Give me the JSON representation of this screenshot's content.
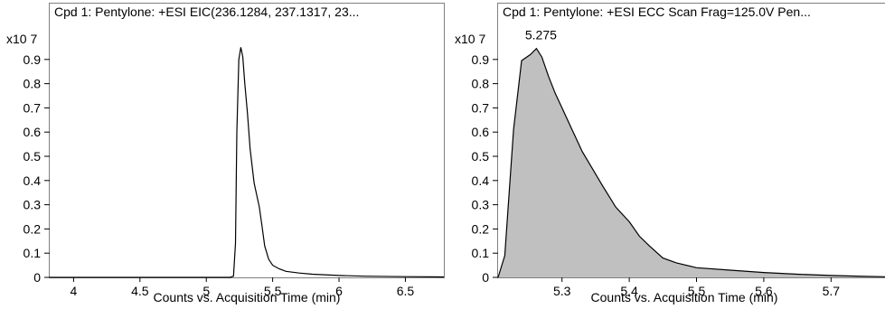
{
  "chart_data": [
    {
      "type": "line",
      "title": "Cpd 1: Pentylone: +ESI EIC(236.1284, 237.1317, 23...",
      "xlabel": "Counts vs. Acquisition Time (min)",
      "ylabel": "",
      "y_multiplier": "x10 7",
      "xlim": [
        3.82,
        6.79
      ],
      "ylim": [
        0,
        1.0
      ],
      "xticks": [
        4,
        4.5,
        5,
        5.5,
        6,
        6.5
      ],
      "xtick_labels": [
        "4",
        "4.5",
        "5",
        "5.5",
        "6",
        "6.5"
      ],
      "yticks": [
        0,
        0.1,
        0.2,
        0.3,
        0.4,
        0.5,
        0.6,
        0.7,
        0.8,
        0.9
      ],
      "ytick_labels": [
        "0",
        "0.1",
        "0.2",
        "0.3",
        "0.4",
        "0.5",
        "0.6",
        "0.7",
        "0.8",
        "0.9"
      ],
      "grid": false,
      "fill": false,
      "line_color": "#000000",
      "series": [
        {
          "x": [
            3.82,
            5.18,
            5.205,
            5.22,
            5.23,
            5.245,
            5.26,
            5.275,
            5.29,
            5.31,
            5.33,
            5.36,
            5.4,
            5.42,
            5.44,
            5.47,
            5.5,
            5.55,
            5.6,
            5.7,
            5.8,
            6.0,
            6.2,
            6.5,
            6.79
          ],
          "y": [
            0,
            0,
            0.005,
            0.14,
            0.6,
            0.9,
            0.95,
            0.91,
            0.8,
            0.68,
            0.53,
            0.39,
            0.29,
            0.21,
            0.13,
            0.075,
            0.05,
            0.035,
            0.025,
            0.018,
            0.013,
            0.008,
            0.005,
            0.003,
            0.002
          ]
        }
      ]
    },
    {
      "type": "area",
      "title": "Cpd 1: Pentylone: +ESI ECC Scan Frag=125.0V Pen...",
      "xlabel": "Counts vs. Acquisition Time (min)",
      "ylabel": "",
      "y_multiplier": "x10 7",
      "xlim": [
        5.205,
        5.795
      ],
      "ylim": [
        0,
        1.0
      ],
      "xticks": [
        5.3,
        5.4,
        5.5,
        5.6,
        5.7
      ],
      "xtick_labels": [
        "5.3",
        "5.4",
        "5.5",
        "5.6",
        "5.7"
      ],
      "yticks": [
        0,
        0.1,
        0.2,
        0.3,
        0.4,
        0.5,
        0.6,
        0.7,
        0.8,
        0.9
      ],
      "ytick_labels": [
        "0",
        "0.1",
        "0.2",
        "0.3",
        "0.4",
        "0.5",
        "0.6",
        "0.7",
        "0.8",
        "0.9"
      ],
      "grid": false,
      "fill": true,
      "fill_color": "#c0c0c0",
      "line_color": "#000000",
      "annotations": [
        {
          "text": "5.275",
          "x": 5.262,
          "y": 0.945
        }
      ],
      "series": [
        {
          "x": [
            5.205,
            5.215,
            5.228,
            5.24,
            5.253,
            5.262,
            5.27,
            5.28,
            5.29,
            5.3,
            5.315,
            5.33,
            5.345,
            5.36,
            5.38,
            5.4,
            5.415,
            5.43,
            5.45,
            5.47,
            5.5,
            5.55,
            5.6,
            5.65,
            5.7,
            5.75,
            5.795
          ],
          "y": [
            0,
            0.09,
            0.61,
            0.895,
            0.92,
            0.945,
            0.91,
            0.83,
            0.76,
            0.7,
            0.61,
            0.52,
            0.45,
            0.38,
            0.29,
            0.23,
            0.17,
            0.13,
            0.08,
            0.06,
            0.04,
            0.03,
            0.02,
            0.013,
            0.008,
            0.004,
            0.002
          ]
        }
      ]
    }
  ]
}
